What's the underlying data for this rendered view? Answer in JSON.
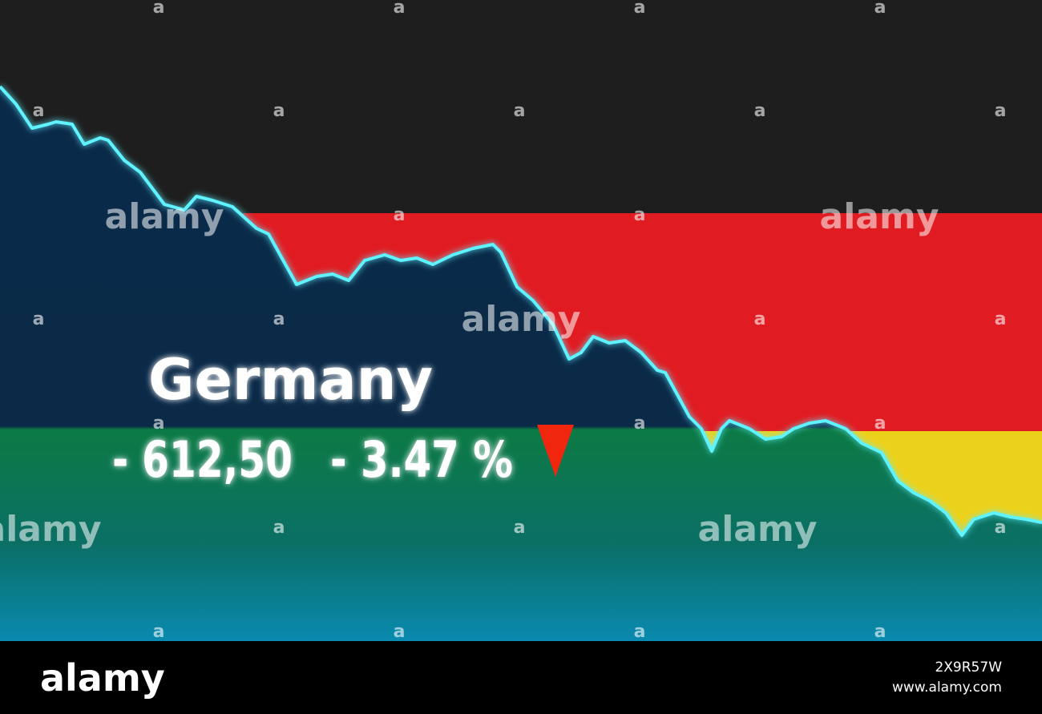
{
  "headline": {
    "country": "Germany",
    "change": "- 612,50",
    "percent": "- 3.47 %"
  },
  "watermark": {
    "logo": "alamy",
    "mark": "a"
  },
  "footer": {
    "logo": "alamy",
    "image_id": "2X9R57W",
    "url": "www.alamy.com"
  }
}
